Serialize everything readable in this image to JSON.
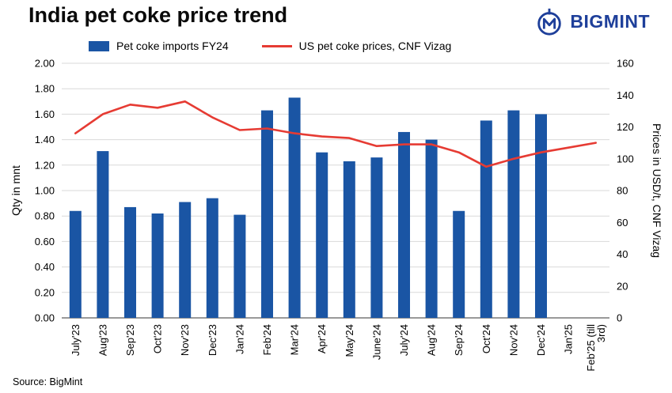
{
  "header": {
    "title": "India pet coke price trend",
    "brand": "BIGMINT",
    "brand_color": "#1e3f9a"
  },
  "legend": {
    "bar_label": "Pet coke imports FY24",
    "line_label": "US pet coke prices, CNF Vizag"
  },
  "footer": {
    "source": "Source: BigMint"
  },
  "chart_data": {
    "type": "bar+line combo",
    "categories": [
      "July'23",
      "Aug'23",
      "Sep'23",
      "Oct'23",
      "Nov'23",
      "Dec'23",
      "Jan'24",
      "Feb'24",
      "Mar'24",
      "Apr'24",
      "May'24",
      "June'24",
      "July'24",
      "Aug'24",
      "Sep'24",
      "Oct'24",
      "Nov'24",
      "Dec'24",
      "Jan'25",
      "Feb'25 (till\n3rd)"
    ],
    "series": [
      {
        "name": "Pet coke imports FY24",
        "type": "bar",
        "axis": "left",
        "color": "#1a55a4",
        "values": [
          0.84,
          1.31,
          0.87,
          0.82,
          0.91,
          0.94,
          0.81,
          1.63,
          1.73,
          1.3,
          1.23,
          1.26,
          1.46,
          1.4,
          0.84,
          1.55,
          1.63,
          1.6,
          null,
          null
        ]
      },
      {
        "name": "US pet coke prices, CNF Vizag",
        "type": "line",
        "axis": "right",
        "color": "#e63b33",
        "values": [
          116,
          128,
          134,
          132,
          136,
          126,
          118,
          119,
          116,
          114,
          113,
          108,
          109,
          109,
          104,
          95,
          100,
          104,
          107,
          110
        ]
      }
    ],
    "left_axis": {
      "title": "Qty in mnt",
      "min": 0,
      "max": 2.0,
      "step": 0.2
    },
    "right_axis": {
      "title": "Prices in USD/t, CNF Vizag",
      "min": 0,
      "max": 160,
      "step": 20
    },
    "grid": "horizontal",
    "legend_position": "top"
  }
}
